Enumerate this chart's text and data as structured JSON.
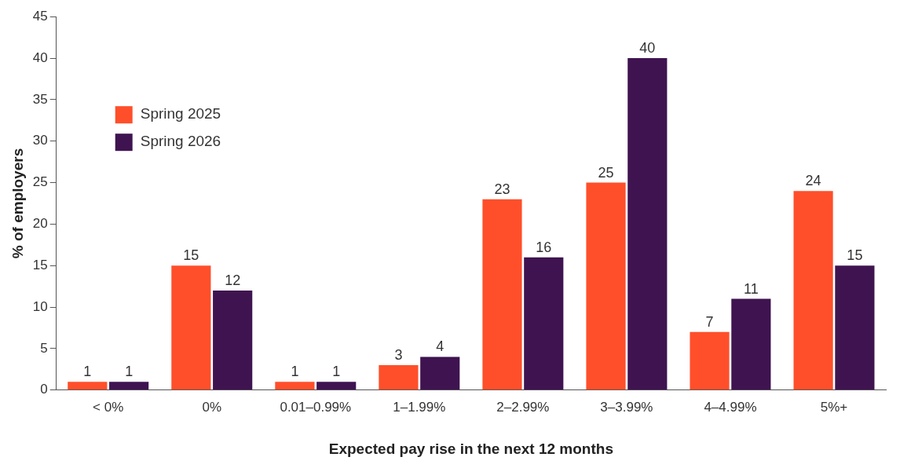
{
  "chart_data": {
    "type": "bar",
    "xlabel": "Expected pay rise in the next 12 months",
    "ylabel": "% of employers",
    "categories": [
      "< 0%",
      "0%",
      "0.01–0.99%",
      "1–1.99%",
      "2–2.99%",
      "3–3.99%",
      "4–4.99%",
      "5%+"
    ],
    "series": [
      {
        "name": "Spring 2025",
        "color": "#ff4f2a",
        "values": [
          1,
          15,
          1,
          3,
          23,
          25,
          7,
          24
        ]
      },
      {
        "name": "Spring 2026",
        "color": "#3f1350",
        "values": [
          1,
          12,
          1,
          4,
          16,
          40,
          11,
          15
        ]
      }
    ],
    "ylim": [
      0,
      45
    ],
    "yticks": [
      0,
      5,
      10,
      15,
      20,
      25,
      30,
      35,
      40,
      45
    ],
    "grid": false,
    "legend": "top left",
    "data_labels": true
  }
}
